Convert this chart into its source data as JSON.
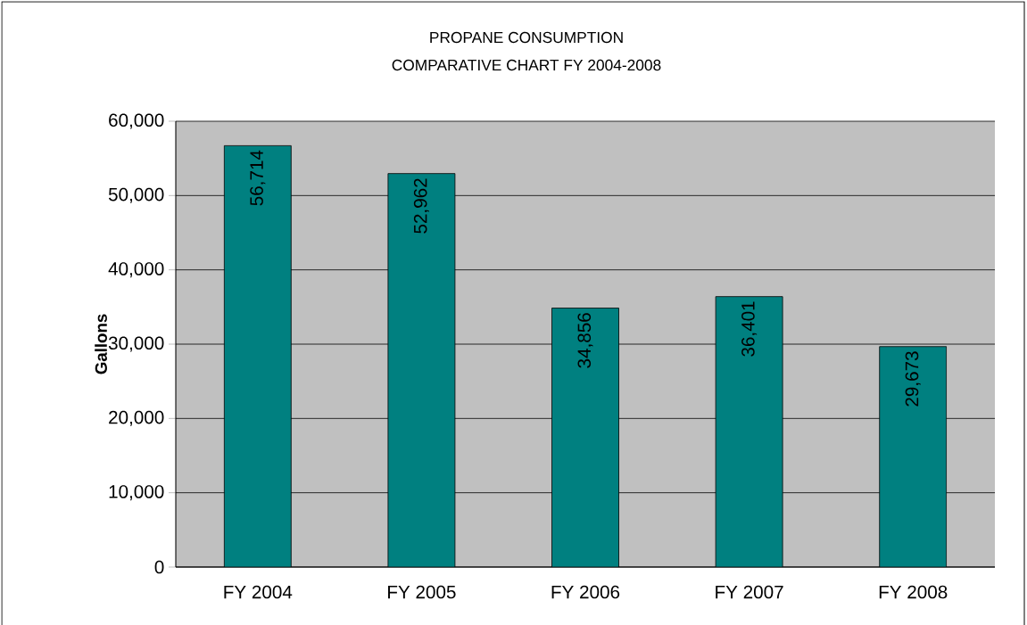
{
  "chart_data": {
    "type": "bar",
    "title": "PROPANE CONSUMPTION",
    "subtitle": "COMPARATIVE CHART FY 2004-2008",
    "ylabel": "Gallons",
    "categories": [
      "FY 2004",
      "FY 2005",
      "FY 2006",
      "FY 2007",
      "FY 2008"
    ],
    "values": [
      56714,
      52962,
      34856,
      36401,
      29673
    ],
    "value_labels": [
      "56,714",
      "52,962",
      "34,856",
      "36,401",
      "29,673"
    ],
    "color": "#008080",
    "ylim": [
      0,
      60000
    ],
    "yticks": [
      0,
      {
        "value": 10000,
        "label": "10,000"
      },
      {
        "value": 20000,
        "label": "20,000"
      },
      {
        "value": 30000,
        "label": "30,000"
      },
      {
        "value": 40000,
        "label": "40,000"
      },
      {
        "value": 50000,
        "label": "50,000"
      },
      {
        "value": 60000,
        "label": "60,000"
      }
    ],
    "grid": true
  }
}
